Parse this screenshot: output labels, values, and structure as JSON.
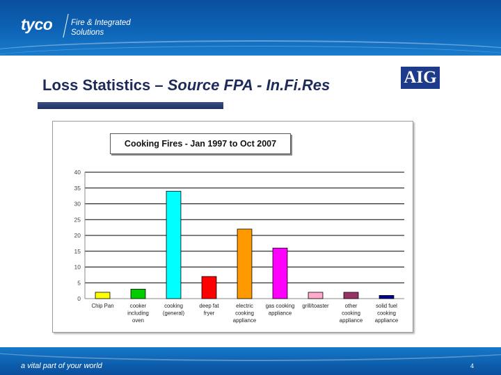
{
  "header": {
    "logo": "tyco",
    "tagline_line1": "Fire & Integrated",
    "tagline_line2": "Solutions"
  },
  "slide": {
    "title_main": "Loss Statistics – ",
    "title_italic": "Source FPA - In.Fi.Res",
    "partner_logo": "AIG"
  },
  "footer": {
    "tagline": "a vital part of your world",
    "page_number": "4"
  },
  "colors": {
    "brand_blue": "#0d64b6",
    "title_navy": "#1e2a5a",
    "aig_blue": "#1e3a8a"
  },
  "chart_data": {
    "type": "bar",
    "title": "Cooking Fires - Jan 1997 to Oct 2007",
    "xlabel": "",
    "ylabel": "",
    "ylim": [
      0,
      40
    ],
    "yticks": [
      0,
      5,
      10,
      15,
      20,
      25,
      30,
      35,
      40
    ],
    "grid": true,
    "categories": [
      [
        "Chip Pan"
      ],
      [
        "cooker",
        "including",
        "oven"
      ],
      [
        "cooking",
        "(general)"
      ],
      [
        "deep fat",
        "fryer"
      ],
      [
        "electric",
        "cooking",
        "appliance"
      ],
      [
        "gas cooking",
        "appliance"
      ],
      [
        "grill/toaster"
      ],
      [
        "other",
        "cooking",
        "appliance"
      ],
      [
        "solid fuel",
        "cooking",
        "appliance"
      ]
    ],
    "values": [
      2,
      3,
      34,
      7,
      22,
      16,
      2,
      2,
      1
    ],
    "bar_colors": [
      "#ffff00",
      "#00cc00",
      "#00ffff",
      "#ff0000",
      "#ff9900",
      "#ff00ff",
      "#ffaacc",
      "#993366",
      "#000099"
    ]
  }
}
